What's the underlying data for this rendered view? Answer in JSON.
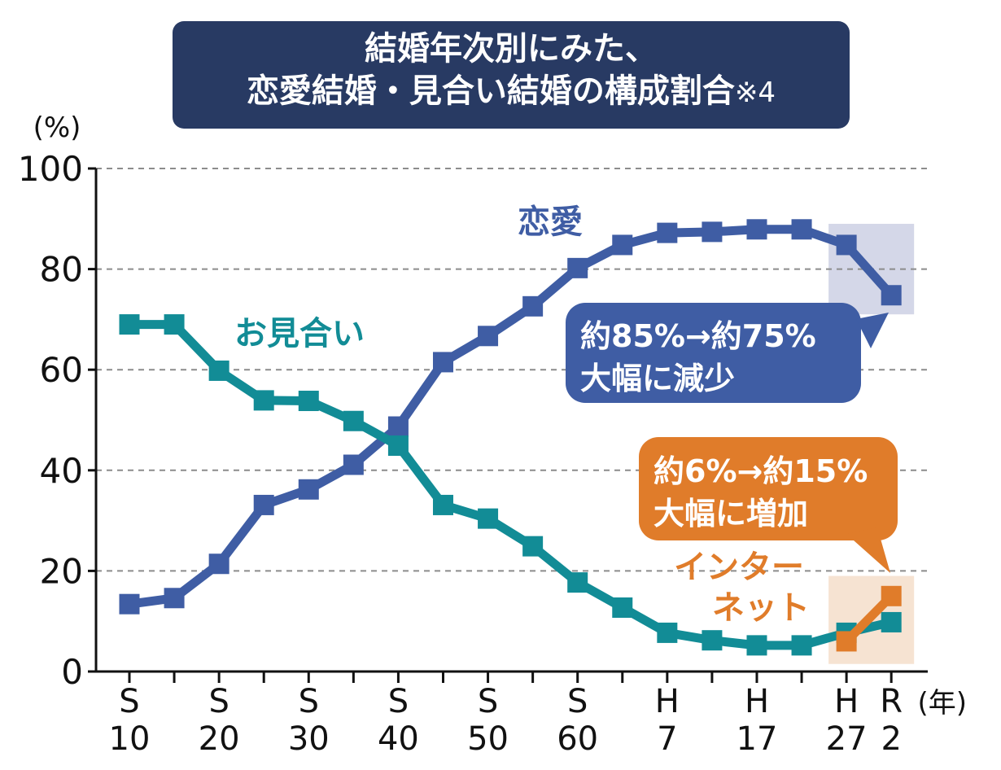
{
  "chart_data": {
    "type": "line",
    "title": [
      "結婚年次別にみた、",
      "恋愛結婚・見合い結婚の構成割合"
    ],
    "title_note": "※4",
    "ylabel": "(%)",
    "xlabel": "(年)",
    "ylim": [
      0,
      100
    ],
    "yticks": [
      0,
      20,
      40,
      60,
      80,
      100
    ],
    "grid": "horizontal dashed",
    "x_slots": [
      "S10",
      "S15",
      "S20",
      "S25",
      "S30",
      "S35",
      "S40",
      "S45",
      "S50",
      "S55",
      "S60",
      "H2",
      "H7",
      "H12",
      "H17",
      "H22",
      "H27",
      "R2"
    ],
    "x_tick_labels": [
      {
        "slot": 0,
        "top": "S",
        "bottom": "10"
      },
      {
        "slot": 2,
        "top": "S",
        "bottom": "20"
      },
      {
        "slot": 4,
        "top": "S",
        "bottom": "30"
      },
      {
        "slot": 6,
        "top": "S",
        "bottom": "40"
      },
      {
        "slot": 8,
        "top": "S",
        "bottom": "50"
      },
      {
        "slot": 10,
        "top": "S",
        "bottom": "60"
      },
      {
        "slot": 12,
        "top": "H",
        "bottom": "7"
      },
      {
        "slot": 14,
        "top": "H",
        "bottom": "17"
      },
      {
        "slot": 16,
        "top": "H",
        "bottom": "27"
      },
      {
        "slot": 17,
        "top": "R",
        "bottom": "2"
      }
    ],
    "series": [
      {
        "name": "恋愛",
        "color": "#3f5da4",
        "values": [
          13.4,
          14.6,
          21.4,
          33.1,
          36.2,
          41.1,
          48.7,
          61.5,
          66.7,
          72.6,
          80.2,
          84.8,
          87.2,
          87.4,
          87.9,
          87.9,
          84.8,
          74.8
        ]
      },
      {
        "name": "お見合い",
        "color": "#128c96",
        "values": [
          69.0,
          69.0,
          59.8,
          53.9,
          53.8,
          49.8,
          44.9,
          33.1,
          30.4,
          24.9,
          17.7,
          12.7,
          7.7,
          6.2,
          5.2,
          5.2,
          7.7,
          9.8
        ]
      },
      {
        "name": "インターネット",
        "color": "#e07c2a",
        "values": [
          null,
          null,
          null,
          null,
          null,
          null,
          null,
          null,
          null,
          null,
          null,
          null,
          null,
          null,
          null,
          null,
          6.0,
          15.0
        ]
      }
    ],
    "legend_labels": {
      "love": "恋愛",
      "arranged": "お見合い",
      "internet_line1": "インター",
      "internet_line2": "ネット"
    },
    "callouts": [
      {
        "lines": [
          "約85%→約75%",
          "大幅に減少"
        ],
        "color": "#3f5da4"
      },
      {
        "lines": [
          "約6%→約15%",
          "大幅に増加"
        ],
        "color": "#e07c2a"
      }
    ],
    "highlight_colors": {
      "love": "#d4d7e8",
      "internet": "#f6e3d2"
    }
  }
}
